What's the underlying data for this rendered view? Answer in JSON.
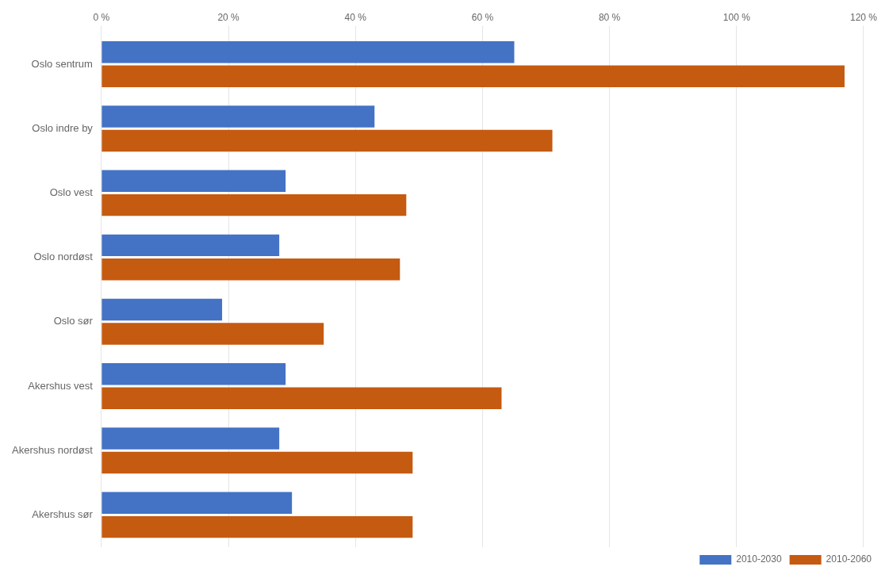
{
  "chart_data": {
    "type": "bar",
    "orientation": "horizontal",
    "categories": [
      "Oslo sentrum",
      "Oslo indre by",
      "Oslo vest",
      "Oslo nordøst",
      "Oslo sør",
      "Akershus vest",
      "Akershus nordøst",
      "Akershus sør"
    ],
    "series": [
      {
        "name": "2010-2030",
        "color": "#4472C4",
        "values": [
          65,
          43,
          29,
          28,
          19,
          29,
          28,
          30
        ]
      },
      {
        "name": "2010-2060",
        "color": "#C55A11",
        "values": [
          117,
          71,
          48,
          47,
          35,
          63,
          49,
          49
        ]
      }
    ],
    "xlim": [
      0,
      120
    ],
    "xticks": [
      {
        "value": 0,
        "label": "0 %"
      },
      {
        "value": 20,
        "label": "20 %"
      },
      {
        "value": 40,
        "label": "40 %"
      },
      {
        "value": 60,
        "label": "60 %"
      },
      {
        "value": 80,
        "label": "80 %"
      },
      {
        "value": 100,
        "label": "100 %"
      },
      {
        "value": 120,
        "label": "120 %"
      }
    ],
    "grid": true,
    "legend": "lower right"
  }
}
